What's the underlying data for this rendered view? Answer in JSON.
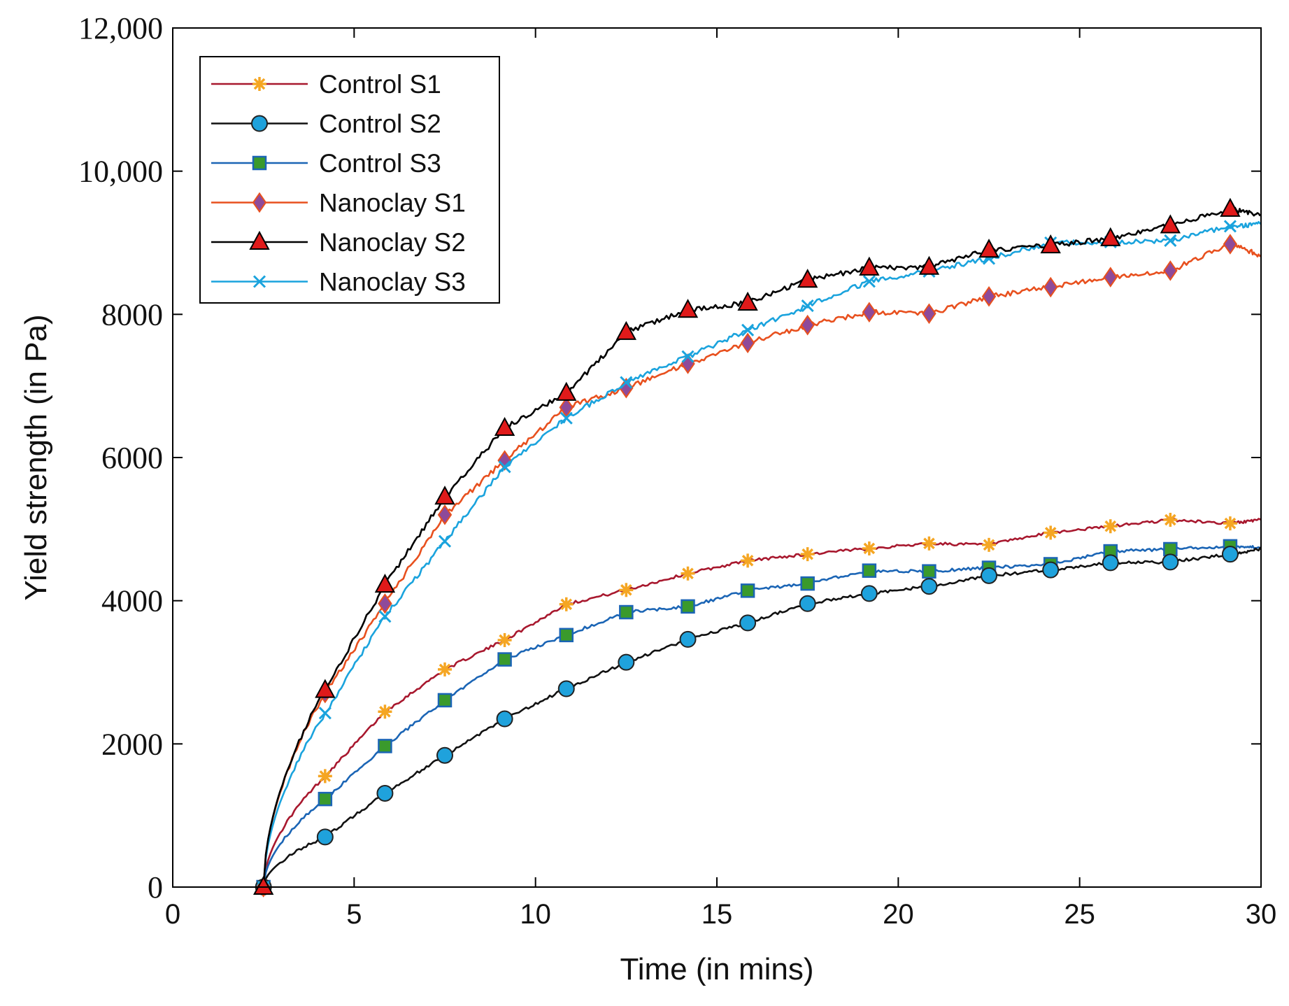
{
  "chart_data": {
    "type": "line",
    "title": "",
    "xlabel": "Time (in mins)",
    "ylabel": "Yield strength (in Pa)",
    "xlim": [
      0,
      30
    ],
    "ylim": [
      0,
      12000
    ],
    "xticks": [
      0,
      5,
      10,
      15,
      20,
      25,
      30
    ],
    "xtick_labels": [
      "0",
      "5",
      "10",
      "15",
      "20",
      "25",
      "30"
    ],
    "yticks": [
      0,
      2000,
      4000,
      6000,
      8000,
      10000,
      12000
    ],
    "ytick_labels": [
      "0",
      "2000",
      "4000",
      "6000",
      "8000",
      "10,000",
      "12,000"
    ],
    "grid": false,
    "legend_position": "top-left",
    "marker_x": [
      2.5,
      4.2,
      5.85,
      7.5,
      9.15,
      10.85,
      12.5,
      14.2,
      15.85,
      17.5,
      19.2,
      20.85,
      22.5,
      24.2,
      25.85,
      27.5,
      29.15
    ],
    "series": [
      {
        "name": "Control S1",
        "color": "#a8182e",
        "marker": "star",
        "marker_color": "#f5a623",
        "values": [
          0,
          1550,
          2450,
          3040,
          3450,
          3950,
          4150,
          4380,
          4560,
          4650,
          4730,
          4800,
          4780,
          4950,
          5040,
          5130,
          5080
        ],
        "end_value": 5130
      },
      {
        "name": "Control S2",
        "color": "#111111",
        "marker": "circle",
        "marker_color": "#1fa2dc",
        "values": [
          0,
          700,
          1310,
          1840,
          2350,
          2770,
          3140,
          3460,
          3690,
          3960,
          4100,
          4200,
          4350,
          4430,
          4530,
          4540,
          4650
        ],
        "end_value": 4720
      },
      {
        "name": "Control S3",
        "color": "#1b65b5",
        "marker": "square",
        "marker_color": "#3a9a2c",
        "values": [
          0,
          1230,
          1970,
          2610,
          3180,
          3520,
          3840,
          3920,
          4140,
          4240,
          4420,
          4410,
          4460,
          4510,
          4690,
          4720,
          4760
        ],
        "end_value": 4750
      },
      {
        "name": "Nanoclay S1",
        "color": "#e8501e",
        "marker": "diamond",
        "marker_color": "#8e4a9a",
        "values": [
          0,
          2710,
          3960,
          5200,
          5960,
          6700,
          6970,
          7310,
          7600,
          7850,
          8030,
          8010,
          8250,
          8380,
          8520,
          8610,
          8980
        ],
        "end_value": 8820
      },
      {
        "name": "Nanoclay S2",
        "color": "#000000",
        "marker": "triangle",
        "marker_color": "#e01a1a",
        "values": [
          0,
          2750,
          4220,
          5450,
          6410,
          6900,
          7750,
          8060,
          8160,
          8480,
          8650,
          8660,
          8900,
          8960,
          9060,
          9240,
          9470
        ],
        "end_value": 9380
      },
      {
        "name": "Nanoclay S3",
        "color": "#1aa3dd",
        "marker": "x",
        "marker_color": "#1aa3dd",
        "values": [
          0,
          2430,
          3780,
          4830,
          5870,
          6550,
          7050,
          7410,
          7780,
          8120,
          8460,
          8600,
          8780,
          9000,
          9010,
          9030,
          9230
        ],
        "end_value": 9260
      }
    ]
  }
}
